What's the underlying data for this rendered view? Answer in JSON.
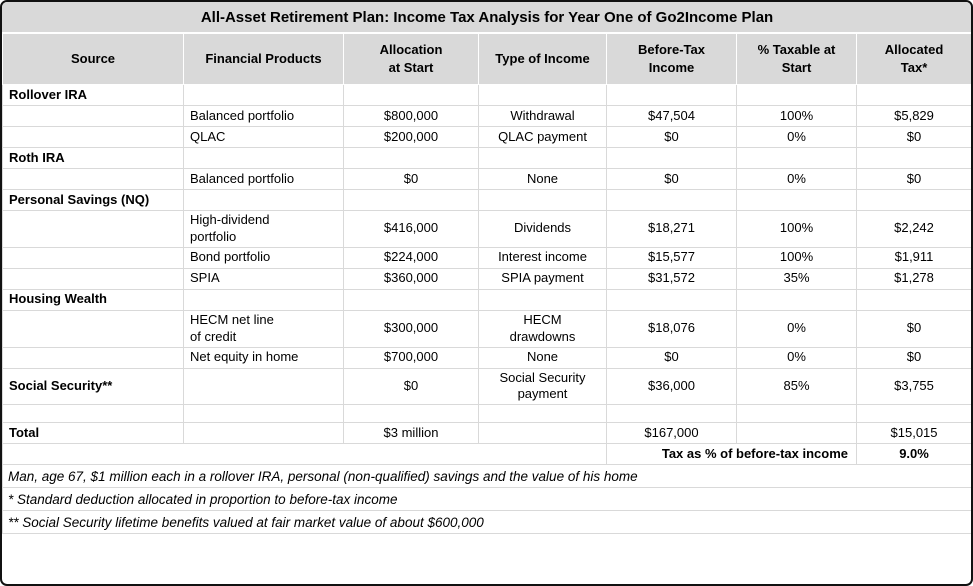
{
  "title": "All-Asset Retirement Plan: Income Tax Analysis for Year One of Go2Income Plan",
  "table": {
    "column_headers": [
      "Source",
      "Financial Products",
      "Allocation\nat Start",
      "Type of Income",
      "Before-Tax\nIncome",
      "% Taxable at\nStart",
      "Allocated\nTax*"
    ],
    "column_alignments": [
      "left",
      "left",
      "center",
      "center",
      "center",
      "center",
      "center"
    ],
    "rows": [
      {
        "type": "section",
        "cells": [
          "Rollover IRA",
          "",
          "",
          "",
          "",
          "",
          ""
        ]
      },
      {
        "type": "data",
        "cells": [
          "",
          "Balanced portfolio",
          "$800,000",
          "Withdrawal",
          "$47,504",
          "100%",
          "$5,829"
        ]
      },
      {
        "type": "data",
        "cells": [
          "",
          "QLAC",
          "$200,000",
          "QLAC payment",
          "$0",
          "0%",
          "$0"
        ]
      },
      {
        "type": "section",
        "cells": [
          "Roth  IRA",
          "",
          "",
          "",
          "",
          "",
          ""
        ]
      },
      {
        "type": "data",
        "cells": [
          "",
          "Balanced portfolio",
          "$0",
          "None",
          "$0",
          "0%",
          "$0"
        ]
      },
      {
        "type": "section",
        "cells": [
          "Personal Savings (NQ)",
          "",
          "",
          "",
          "",
          "",
          ""
        ]
      },
      {
        "type": "data",
        "cells": [
          "",
          "High-dividend\nportfolio",
          "$416,000",
          "Dividends",
          "$18,271",
          "100%",
          "$2,242"
        ]
      },
      {
        "type": "data",
        "cells": [
          "",
          "Bond portfolio",
          "$224,000",
          "Interest income",
          "$15,577",
          "100%",
          "$1,911"
        ]
      },
      {
        "type": "data",
        "cells": [
          "",
          "SPIA",
          "$360,000",
          "SPIA payment",
          "$31,572",
          "35%",
          "$1,278"
        ]
      },
      {
        "type": "section",
        "cells": [
          "Housing Wealth",
          "",
          "",
          "",
          "",
          "",
          ""
        ]
      },
      {
        "type": "data",
        "cells": [
          "",
          "HECM net line\nof credit",
          "$300,000",
          "HECM\ndrawdowns",
          "$18,076",
          "0%",
          "$0"
        ]
      },
      {
        "type": "data",
        "cells": [
          "",
          "Net equity in home",
          "$700,000",
          "None",
          "$0",
          "0%",
          "$0"
        ]
      },
      {
        "type": "social",
        "cells": [
          "Social Security**",
          "",
          "$0",
          "Social Security\npayment",
          "$36,000",
          "85%",
          "$3,755"
        ]
      },
      {
        "type": "spacer",
        "cells": [
          "",
          "",
          "",
          "",
          "",
          "",
          ""
        ]
      },
      {
        "type": "total",
        "cells": [
          "Total",
          "",
          "$3 million",
          "",
          "$167,000",
          "",
          "$15,015"
        ]
      },
      {
        "type": "summary",
        "label": "Tax as % of before-tax income",
        "value": "9.0%"
      }
    ]
  },
  "footnotes": [
    "Man, age 67, $1 million each in a rollover IRA, personal (non-qualified) savings and the value of his home",
    "* Standard deduction allocated in proportion to before-tax income",
    "** Social Security lifetime benefits valued at fair market value of about $600,000"
  ]
}
